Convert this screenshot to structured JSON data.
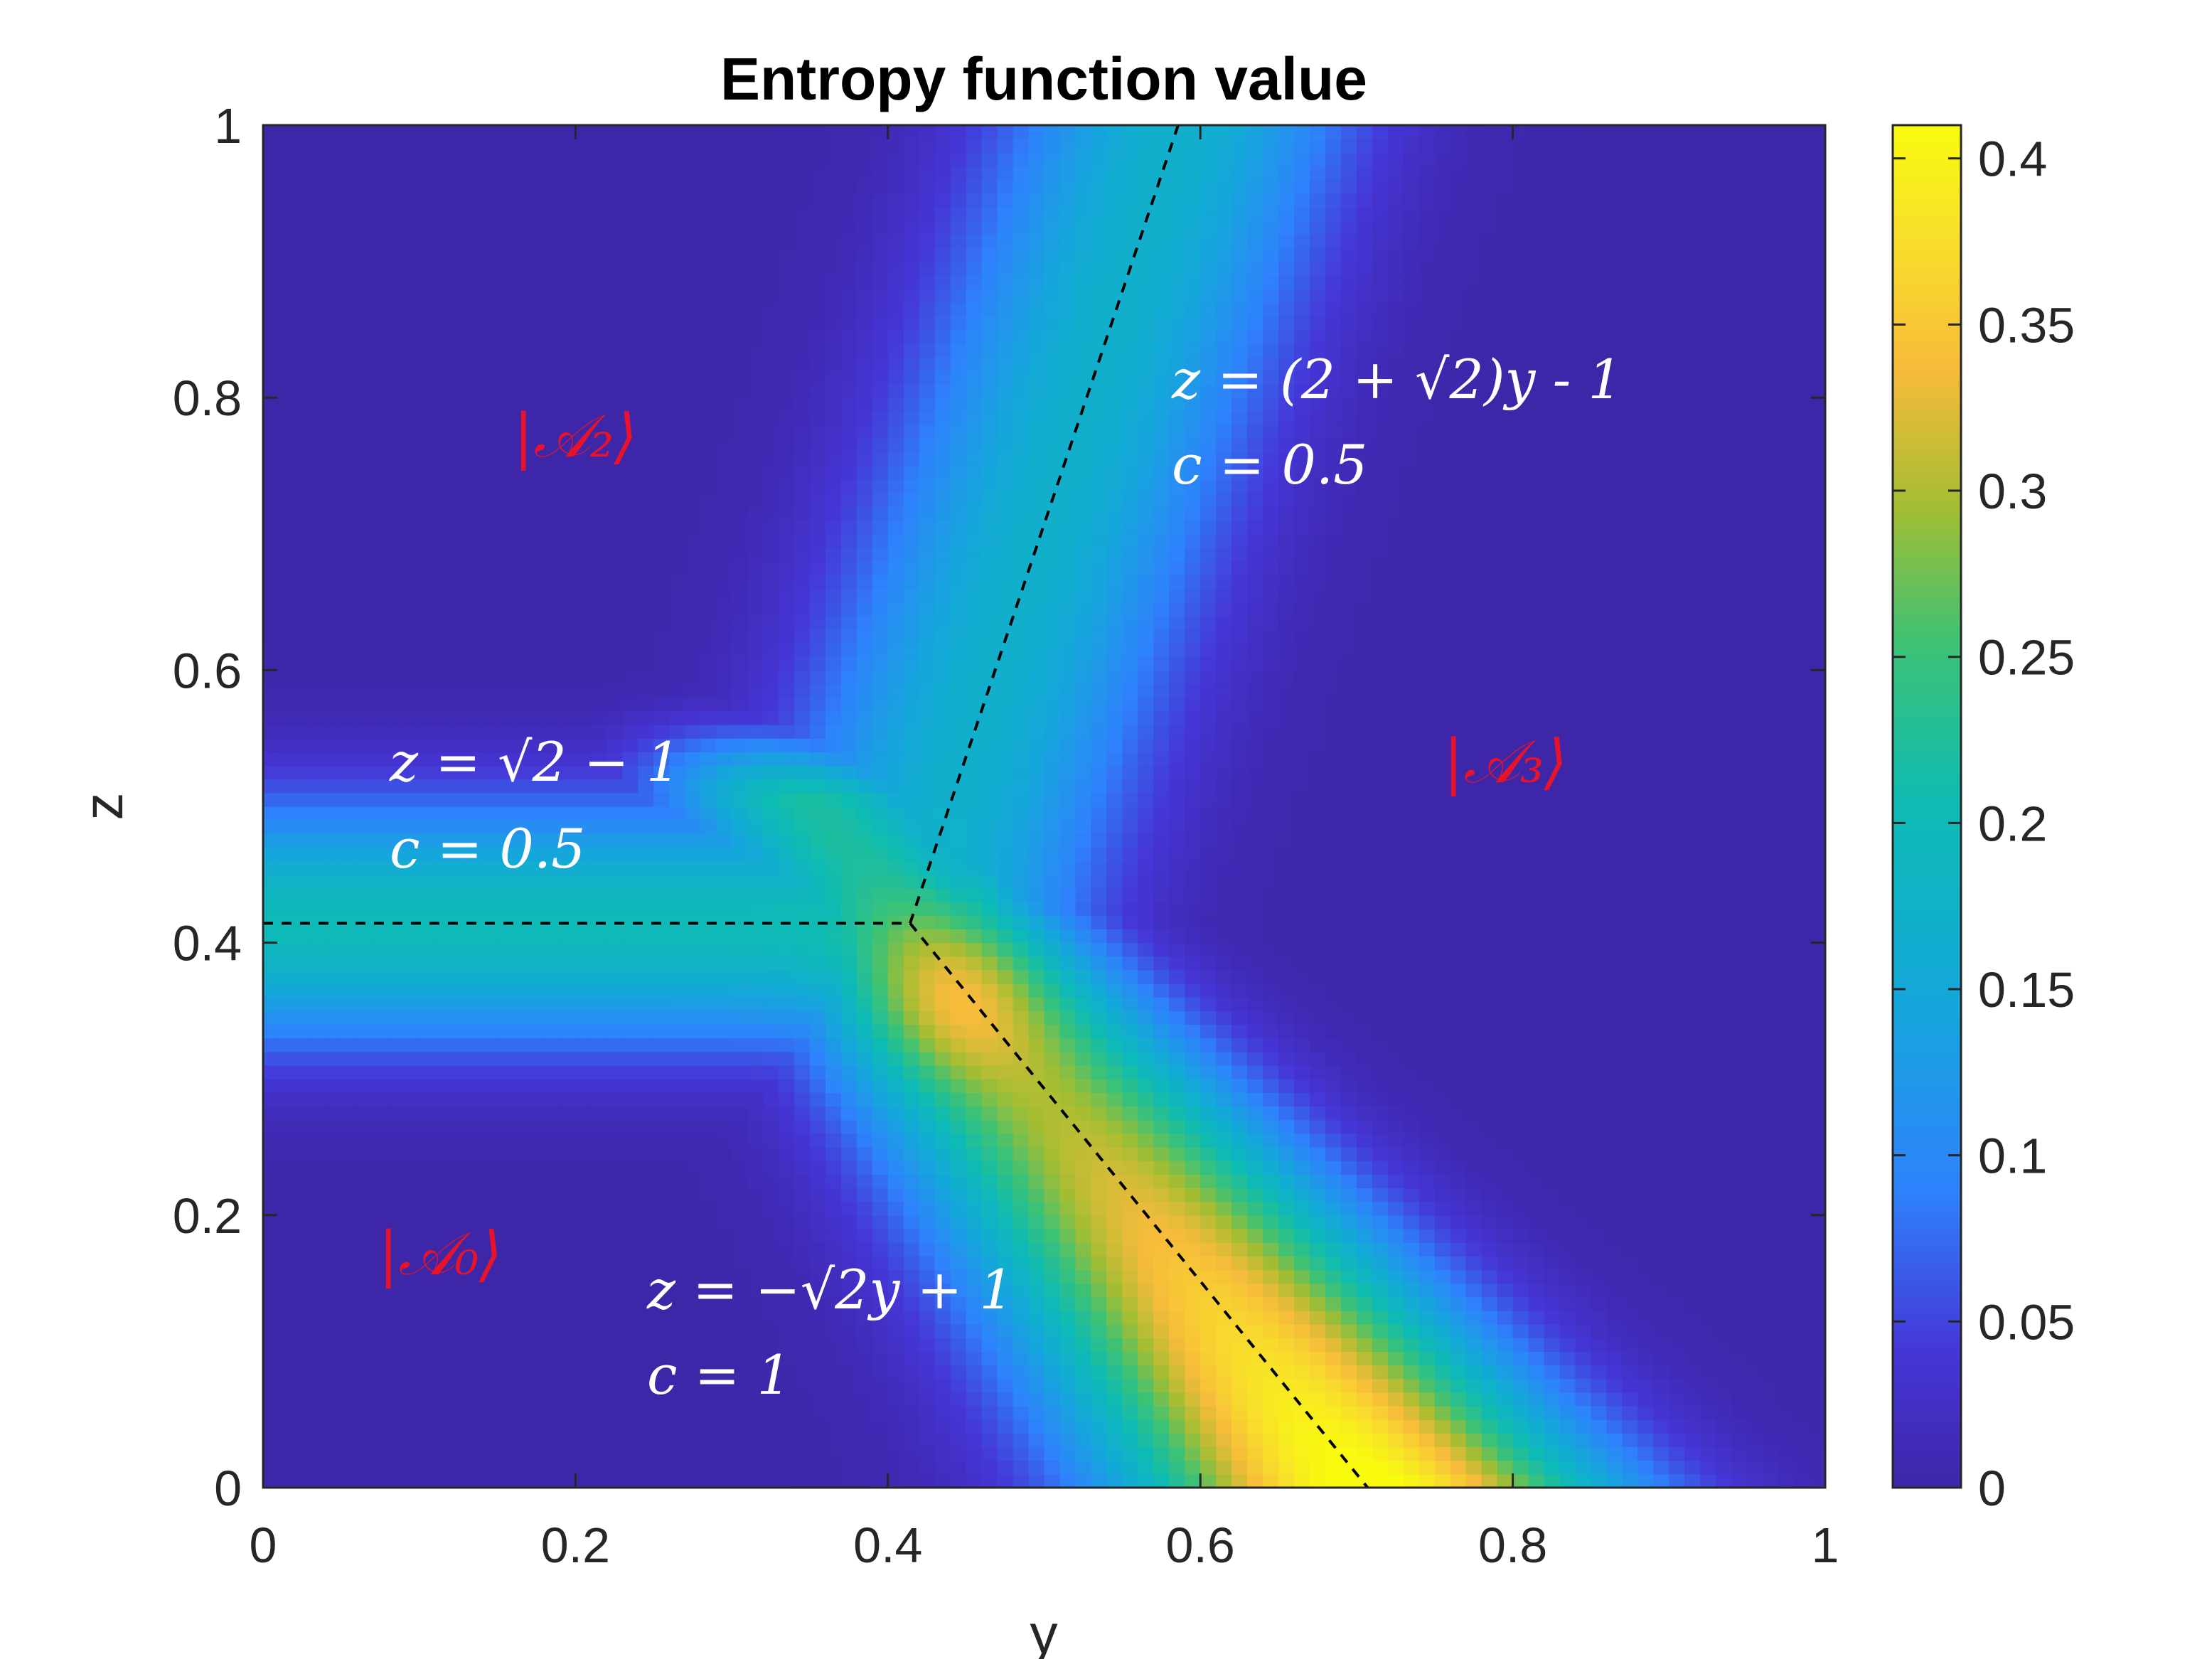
{
  "chart_data": {
    "type": "heatmap",
    "title": "Entropy function value",
    "xlabel": "y",
    "ylabel": "z",
    "xlim": [
      0,
      1
    ],
    "ylim": [
      0,
      1
    ],
    "x_ticks": [
      "0",
      "0.2",
      "0.4",
      "0.6",
      "0.8",
      "1"
    ],
    "y_ticks": [
      "0",
      "0.2",
      "0.4",
      "0.6",
      "0.8",
      "1"
    ],
    "colorbar": {
      "range": [
        0,
        0.41
      ],
      "ticks": [
        "0",
        "0.05",
        "0.1",
        "0.15",
        "0.2",
        "0.25",
        "0.3",
        "0.35",
        "0.4"
      ],
      "colormap": "parula"
    },
    "grid": false,
    "boundaries": [
      {
        "name": "z = sqrt(2) - 1",
        "from": [
          0,
          0.4142
        ],
        "to": [
          0.4142,
          0.4142
        ],
        "style": "dashed"
      },
      {
        "name": "z = (2 + sqrt(2)) y - 1",
        "from": [
          0.4142,
          0.4142
        ],
        "to": [
          0.5858,
          1.0
        ],
        "style": "dashed"
      },
      {
        "name": "z = -sqrt(2) y + 1",
        "from": [
          0.4142,
          0.4142
        ],
        "to": [
          0.7071,
          0.0
        ],
        "style": "dashed"
      }
    ],
    "annotations": [
      {
        "line1": "z = (2 + √2)y - 1",
        "line2": "c = 0.5"
      },
      {
        "line1": "z = √2 − 1",
        "line2": "c = 0.5"
      },
      {
        "line1": "z = −√2y + 1",
        "line2": "c = 1"
      }
    ],
    "region_labels": [
      "|𝒜₂⟩",
      "|𝒜₃⟩",
      "|𝒜₀⟩"
    ]
  },
  "colors": {
    "low": "#3e26a8",
    "high": "#f9fb0e",
    "annotation_text": "#ffffff",
    "state_text": "#e8132a"
  }
}
